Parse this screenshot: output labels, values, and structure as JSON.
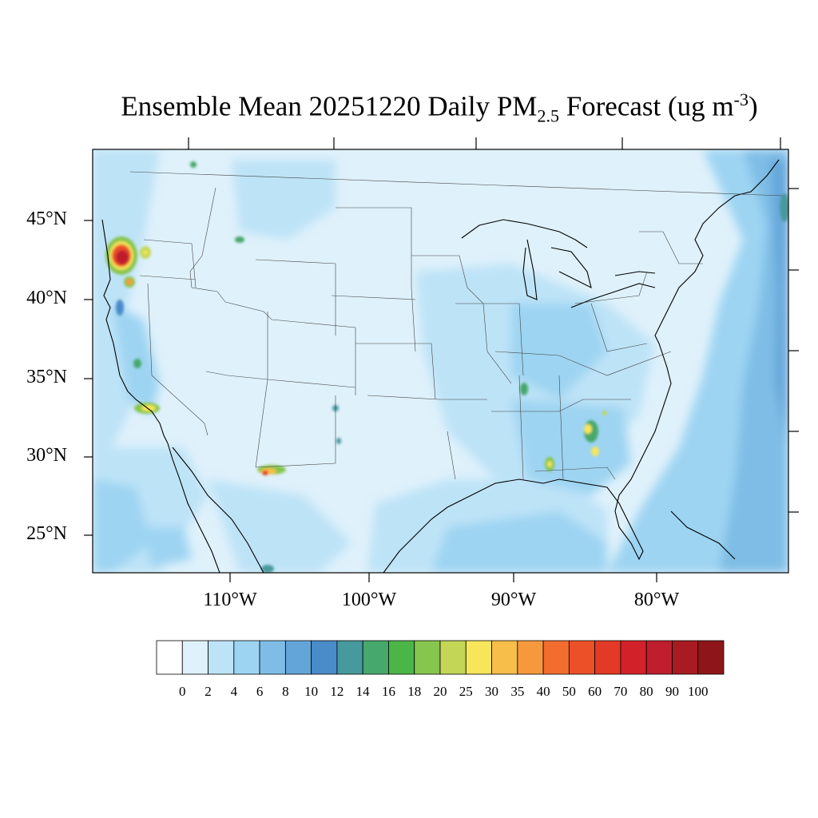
{
  "title": {
    "prefix": "Ensemble Mean 20251220 Daily PM",
    "subscript": "2.5",
    "middle": " Forecast (ug m",
    "superscript": "-3",
    "suffix": ")"
  },
  "lat_labels": [
    "45°N",
    "40°N",
    "35°N",
    "30°N",
    "25°N"
  ],
  "lon_labels": [
    "110°W",
    "100°W",
    "90°W",
    "80°W"
  ],
  "colorbar": {
    "colors": [
      "#ffffff",
      "#dff1fb",
      "#bde3f7",
      "#9dd4f2",
      "#7fbde6",
      "#64a5d9",
      "#4a8bc9",
      "#46999c",
      "#46a86c",
      "#4bb548",
      "#86c54e",
      "#c3d656",
      "#f7e55a",
      "#f8be4a",
      "#f6993c",
      "#f26d2e",
      "#ec5029",
      "#e23a26",
      "#d22129",
      "#be1e2d",
      "#a81b22",
      "#8e161b"
    ],
    "labels": [
      "0",
      "2",
      "4",
      "6",
      "8",
      "10",
      "12",
      "14",
      "16",
      "18",
      "20",
      "25",
      "30",
      "35",
      "40",
      "50",
      "60",
      "70",
      "80",
      "90",
      "100"
    ]
  },
  "map_data": {
    "units": "ug m-3",
    "hotspots": [
      {
        "region": "Southern Oregon / Northern California",
        "level": "70-100"
      },
      {
        "region": "Northern California (near Redding)",
        "level": "30-50"
      },
      {
        "region": "Los Angeles Basin",
        "level": "25-40"
      },
      {
        "region": "El Paso / Ciudad Juarez",
        "level": "35-60"
      },
      {
        "region": "Southwest Georgia",
        "level": "20-30"
      },
      {
        "region": "Southern Alabama",
        "level": "20-30"
      },
      {
        "region": "Western Tennessee",
        "level": "14-18"
      },
      {
        "region": "Western Montana",
        "level": "14-20"
      }
    ]
  }
}
